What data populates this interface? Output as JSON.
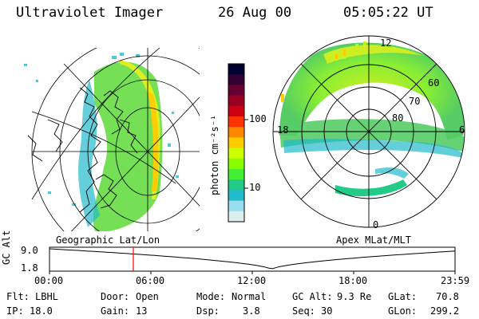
{
  "header": {
    "instrument": "Ultraviolet Imager",
    "date": "26 Aug 00",
    "time": "05:05:22 UT"
  },
  "colorbar": {
    "unit": "photon cm⁻²s⁻¹",
    "ticks": [
      "100",
      "10"
    ],
    "colors": [
      "#000033",
      "#330033",
      "#660033",
      "#990022",
      "#cc0011",
      "#ff3300",
      "#ff8800",
      "#ffcc00",
      "#ccff00",
      "#88ff00",
      "#44ee33",
      "#22cc88",
      "#22bbcc",
      "#99ddee",
      "#ddeeee"
    ]
  },
  "left_map": {
    "caption": "Geographic Lat/Lon"
  },
  "polar_plot": {
    "caption": "Apex MLat/MLT",
    "mlt_labels": {
      "top": "12",
      "left": "18",
      "right": "6",
      "bottom": "0"
    },
    "lat_labels": [
      "60",
      "70",
      "80"
    ]
  },
  "timeline": {
    "ylabel": "GC Alt",
    "y_ticks": [
      "9.0",
      "1.8"
    ],
    "x_ticks": [
      "00:00",
      "06:00",
      "12:00",
      "18:00",
      "23:59"
    ],
    "marker_time": "05:05:22"
  },
  "info": {
    "flt_label": "Flt:",
    "flt_value": "LBHL",
    "ip_label": "IP:",
    "ip_value": "18.0",
    "door_label": "Door:",
    "door_value": "Open",
    "gain_label": "Gain:",
    "gain_value": "13",
    "mode_label": "Mode:",
    "mode_value": "Normal",
    "dsp_label": "Dsp:",
    "dsp_value": "3.8",
    "gcalt_label": "GC Alt:",
    "gcalt_value": "9.3 Re",
    "seq_label": "Seq:",
    "seq_value": "30",
    "glat_label": "GLat:",
    "glat_value": "70.8",
    "glon_label": "GLon:",
    "glon_value": "299.2"
  }
}
